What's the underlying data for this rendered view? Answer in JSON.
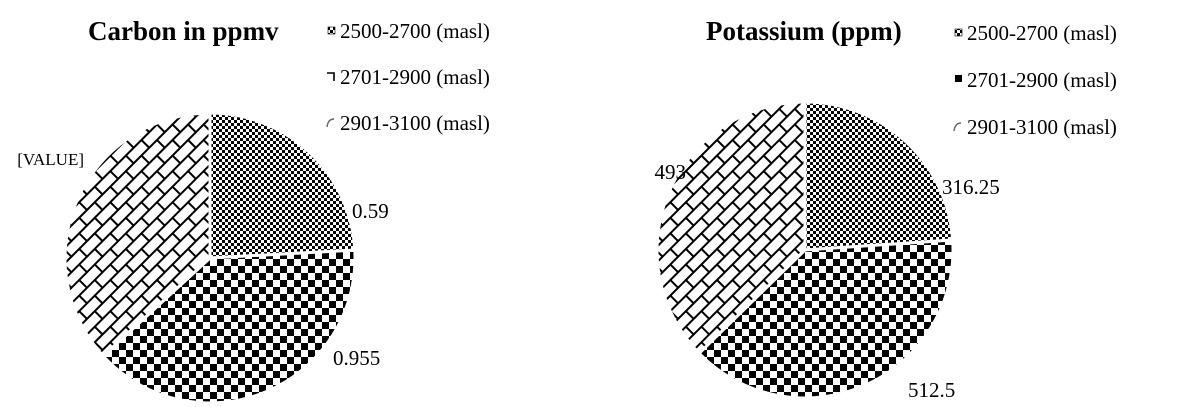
{
  "chart_data": [
    {
      "type": "pie",
      "title": "Carbon in ppmv",
      "categories": [
        "2500-2700 (masl)",
        "2701-2900 (masl)",
        "2901-3100 (masl)"
      ],
      "values": [
        0.59,
        0.955,
        0.9
      ],
      "data_labels": [
        "0.59",
        "0.955",
        "[VALUE]"
      ],
      "legend_position": "right",
      "patterns": [
        "small-checker",
        "large-checker",
        "brick"
      ]
    },
    {
      "type": "pie",
      "title": "Potassium (ppm)",
      "categories": [
        "2500-2700 (masl)",
        "2701-2900 (masl)",
        "2901-3100 (masl)"
      ],
      "values": [
        316.25,
        512.5,
        493
      ],
      "data_labels": [
        "316.25",
        "512.5",
        "493"
      ],
      "legend_position": "right",
      "patterns": [
        "small-checker",
        "large-checker",
        "brick"
      ]
    }
  ]
}
